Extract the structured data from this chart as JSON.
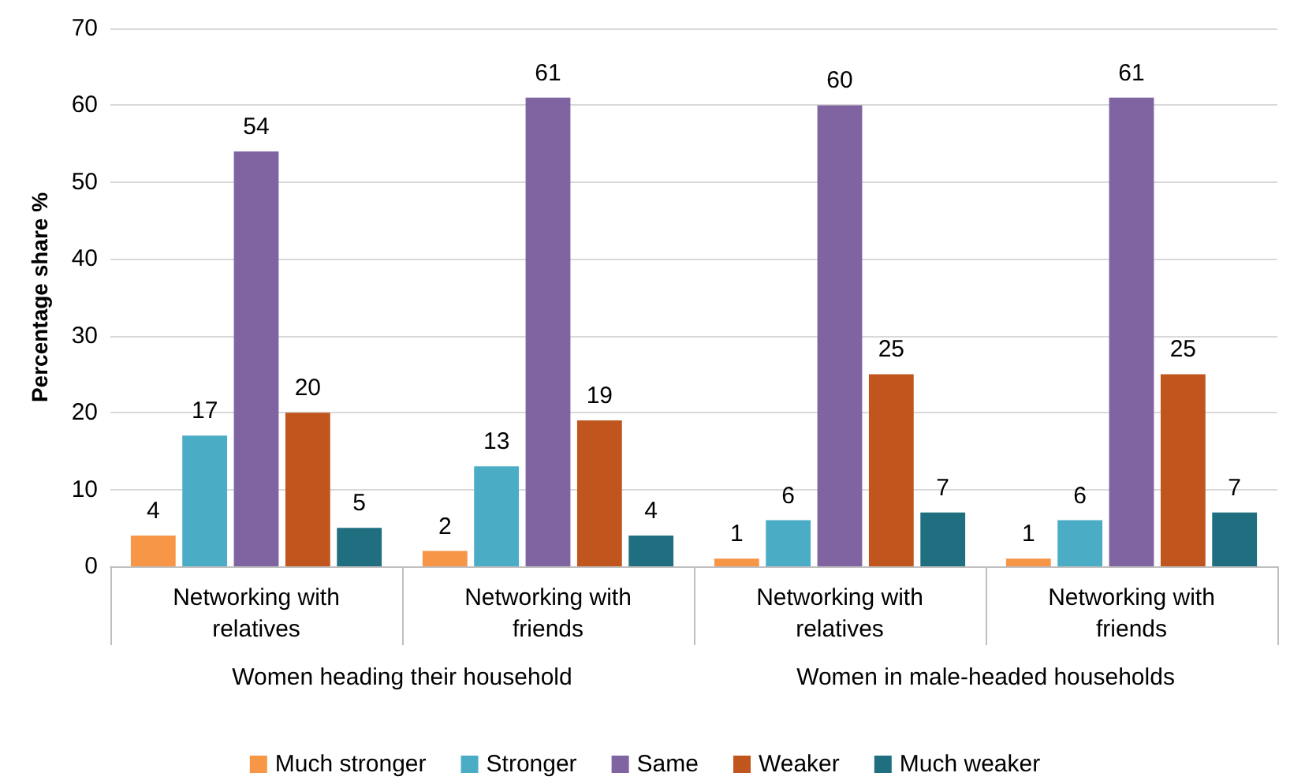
{
  "chart_data": {
    "type": "bar",
    "ylabel": "Percentage share %",
    "categories": [
      "Networking with relatives",
      "Networking with friends",
      "Networking with relatives",
      "Networking with friends"
    ],
    "annotations": [
      "Women heading their household",
      "Women in male-headed households"
    ],
    "series": [
      {
        "name": "Much stronger",
        "color": "#f79646",
        "values": [
          4,
          2,
          1,
          1
        ]
      },
      {
        "name": "Stronger",
        "color": "#4bacc6",
        "values": [
          17,
          13,
          6,
          6
        ]
      },
      {
        "name": "Same",
        "color": "#8064a2",
        "values": [
          54,
          61,
          60,
          61
        ]
      },
      {
        "name": "Weaker",
        "color": "#c0561e",
        "values": [
          20,
          19,
          25,
          25
        ]
      },
      {
        "name": "Much weaker",
        "color": "#1f6f80",
        "values": [
          5,
          4,
          7,
          7
        ]
      }
    ],
    "ylim": [
      0,
      70
    ],
    "yticks": [
      0,
      10,
      20,
      30,
      40,
      50,
      60,
      70
    ],
    "grid": "y",
    "legend": "bottom",
    "data_labels": true
  }
}
